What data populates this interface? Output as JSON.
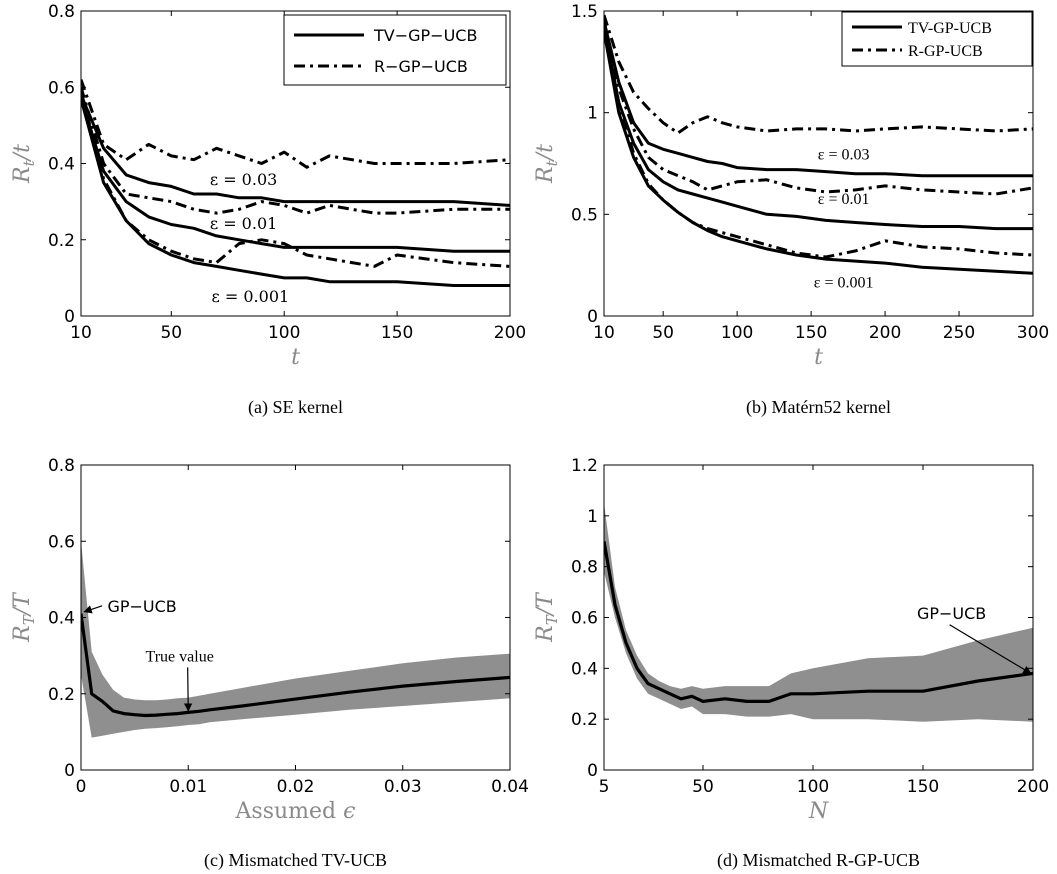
{
  "chart_data": [
    {
      "id": "a",
      "type": "line",
      "caption": "(a) SE kernel",
      "xlabel": "t",
      "ylabel": "R_t / t",
      "xlim": [
        10,
        200
      ],
      "ylim": [
        0,
        0.8
      ],
      "xticks": [
        10,
        50,
        100,
        150,
        200
      ],
      "yticks": [
        0,
        0.2,
        0.4,
        0.6,
        0.8
      ],
      "ytick_labels": [
        "0",
        "0.2",
        "0.4",
        "0.6",
        "0.8"
      ],
      "legend": {
        "placement": "top-right",
        "entries": [
          {
            "label": "TV−GP−UCB",
            "style": "solid"
          },
          {
            "label": "R−GP−UCB",
            "style": "dashdot"
          }
        ]
      },
      "series": [
        {
          "style": "solid",
          "group": "ε = 0.03",
          "x": [
            10,
            20,
            30,
            40,
            50,
            60,
            70,
            80,
            90,
            100,
            110,
            120,
            130,
            140,
            150,
            175,
            200
          ],
          "y": [
            0.58,
            0.44,
            0.37,
            0.35,
            0.34,
            0.32,
            0.32,
            0.31,
            0.31,
            0.3,
            0.3,
            0.3,
            0.3,
            0.3,
            0.3,
            0.3,
            0.29
          ]
        },
        {
          "style": "dashdot",
          "group": "ε = 0.03",
          "x": [
            10,
            20,
            30,
            40,
            50,
            60,
            70,
            80,
            90,
            100,
            110,
            120,
            130,
            140,
            150,
            175,
            200
          ],
          "y": [
            0.62,
            0.45,
            0.41,
            0.45,
            0.42,
            0.41,
            0.44,
            0.42,
            0.4,
            0.43,
            0.39,
            0.42,
            0.41,
            0.4,
            0.4,
            0.4,
            0.41
          ]
        },
        {
          "style": "solid",
          "group": "ε = 0.01",
          "x": [
            10,
            20,
            30,
            40,
            50,
            60,
            70,
            80,
            90,
            100,
            110,
            120,
            130,
            140,
            150,
            175,
            200
          ],
          "y": [
            0.57,
            0.38,
            0.3,
            0.26,
            0.24,
            0.23,
            0.21,
            0.2,
            0.19,
            0.18,
            0.18,
            0.18,
            0.18,
            0.18,
            0.18,
            0.17,
            0.17
          ]
        },
        {
          "style": "dashdot",
          "group": "ε = 0.01",
          "x": [
            10,
            20,
            30,
            40,
            50,
            60,
            70,
            80,
            90,
            100,
            110,
            120,
            130,
            140,
            150,
            175,
            200
          ],
          "y": [
            0.6,
            0.4,
            0.32,
            0.31,
            0.3,
            0.28,
            0.27,
            0.28,
            0.3,
            0.29,
            0.27,
            0.29,
            0.28,
            0.27,
            0.27,
            0.28,
            0.28
          ]
        },
        {
          "style": "solid",
          "group": "ε = 0.001",
          "x": [
            10,
            20,
            30,
            40,
            50,
            60,
            70,
            80,
            90,
            100,
            110,
            120,
            130,
            140,
            150,
            175,
            200
          ],
          "y": [
            0.57,
            0.35,
            0.25,
            0.19,
            0.16,
            0.14,
            0.13,
            0.12,
            0.11,
            0.1,
            0.1,
            0.09,
            0.09,
            0.09,
            0.09,
            0.08,
            0.08
          ]
        },
        {
          "style": "dashdot",
          "group": "ε = 0.001",
          "x": [
            10,
            20,
            30,
            40,
            50,
            60,
            70,
            80,
            90,
            100,
            110,
            120,
            130,
            140,
            150,
            175,
            200
          ],
          "y": [
            0.59,
            0.36,
            0.25,
            0.2,
            0.17,
            0.15,
            0.14,
            0.19,
            0.2,
            0.19,
            0.16,
            0.15,
            0.14,
            0.13,
            0.16,
            0.14,
            0.13
          ]
        }
      ],
      "annotations": [
        {
          "text": "ε = 0.03",
          "x": 82,
          "y": 0.343
        },
        {
          "text": "ε = 0.01",
          "x": 82,
          "y": 0.228
        },
        {
          "text": "ε = 0.001",
          "x": 85,
          "y": 0.037
        }
      ]
    },
    {
      "id": "b",
      "type": "line",
      "caption": "(b) Matérn52 kernel",
      "xlabel": "t",
      "ylabel": "R_t / t",
      "xlim": [
        10,
        300
      ],
      "ylim": [
        0,
        1.5
      ],
      "xticks": [
        10,
        50,
        100,
        150,
        200,
        250,
        300
      ],
      "yticks": [
        0,
        0.5,
        1,
        1.5
      ],
      "ytick_labels": [
        "0",
        "0.5",
        "1",
        "1.5"
      ],
      "legend": {
        "placement": "top-right",
        "entries": [
          {
            "label": "TV-GP-UCB",
            "style": "solid"
          },
          {
            "label": "R-GP-UCB",
            "style": "dashdot"
          }
        ]
      },
      "series": [
        {
          "style": "solid",
          "group": "ε = 0.03",
          "x": [
            10,
            20,
            30,
            40,
            50,
            60,
            70,
            80,
            90,
            100,
            120,
            140,
            160,
            180,
            200,
            225,
            250,
            275,
            300
          ],
          "y": [
            1.45,
            1.15,
            0.95,
            0.85,
            0.82,
            0.8,
            0.78,
            0.76,
            0.75,
            0.73,
            0.72,
            0.72,
            0.71,
            0.7,
            0.7,
            0.69,
            0.69,
            0.69,
            0.69
          ]
        },
        {
          "style": "dashdot",
          "group": "ε = 0.03",
          "x": [
            10,
            20,
            30,
            40,
            50,
            60,
            70,
            80,
            90,
            100,
            120,
            140,
            160,
            180,
            200,
            225,
            250,
            275,
            300
          ],
          "y": [
            1.48,
            1.25,
            1.1,
            1.02,
            0.95,
            0.9,
            0.95,
            0.98,
            0.95,
            0.93,
            0.91,
            0.92,
            0.92,
            0.91,
            0.92,
            0.93,
            0.92,
            0.91,
            0.92
          ]
        },
        {
          "style": "solid",
          "group": "ε = 0.01",
          "x": [
            10,
            20,
            30,
            40,
            50,
            60,
            70,
            80,
            90,
            100,
            120,
            140,
            160,
            180,
            200,
            225,
            250,
            275,
            300
          ],
          "y": [
            1.42,
            1.05,
            0.85,
            0.72,
            0.66,
            0.62,
            0.6,
            0.58,
            0.56,
            0.54,
            0.5,
            0.49,
            0.47,
            0.46,
            0.45,
            0.44,
            0.44,
            0.43,
            0.43
          ]
        },
        {
          "style": "dashdot",
          "group": "ε = 0.01",
          "x": [
            10,
            20,
            30,
            40,
            50,
            60,
            70,
            80,
            90,
            100,
            120,
            140,
            160,
            180,
            200,
            225,
            250,
            275,
            300
          ],
          "y": [
            1.45,
            1.12,
            0.92,
            0.78,
            0.72,
            0.69,
            0.66,
            0.62,
            0.64,
            0.66,
            0.67,
            0.63,
            0.61,
            0.62,
            0.64,
            0.62,
            0.61,
            0.6,
            0.63
          ]
        },
        {
          "style": "solid",
          "group": "ε = 0.001",
          "x": [
            10,
            20,
            30,
            40,
            50,
            60,
            70,
            80,
            90,
            100,
            120,
            140,
            160,
            180,
            200,
            225,
            250,
            275,
            300
          ],
          "y": [
            1.4,
            1.0,
            0.78,
            0.64,
            0.57,
            0.51,
            0.46,
            0.42,
            0.39,
            0.37,
            0.33,
            0.3,
            0.28,
            0.27,
            0.26,
            0.24,
            0.23,
            0.22,
            0.21
          ]
        },
        {
          "style": "dashdot",
          "group": "ε = 0.001",
          "x": [
            10,
            20,
            30,
            40,
            50,
            60,
            70,
            80,
            90,
            100,
            120,
            140,
            160,
            180,
            200,
            225,
            250,
            275,
            300
          ],
          "y": [
            1.43,
            1.05,
            0.8,
            0.65,
            0.57,
            0.51,
            0.46,
            0.43,
            0.41,
            0.39,
            0.35,
            0.31,
            0.29,
            0.32,
            0.37,
            0.34,
            0.33,
            0.31,
            0.3
          ]
        }
      ],
      "annotations": [
        {
          "text": "ε = 0.03",
          "x": 172,
          "y": 0.77
        },
        {
          "text": "ε = 0.01",
          "x": 172,
          "y": 0.55
        },
        {
          "text": "ε = 0.001",
          "x": 172,
          "y": 0.14
        }
      ]
    },
    {
      "id": "c",
      "type": "area",
      "caption": "(c) Mismatched TV-UCB",
      "xlabel": "Assumed ε",
      "ylabel": "R_T / T",
      "xlim": [
        0,
        0.04
      ],
      "ylim": [
        0,
        0.8
      ],
      "xticks": [
        0,
        0.01,
        0.02,
        0.03,
        0.04
      ],
      "xtick_labels": [
        "0",
        "0.01",
        "0.02",
        "0.03",
        "0.04"
      ],
      "yticks": [
        0,
        0.2,
        0.4,
        0.6,
        0.8
      ],
      "ytick_labels": [
        "0",
        "0.2",
        "0.4",
        "0.6",
        "0.8"
      ],
      "mean": {
        "x": [
          0,
          0.001,
          0.002,
          0.003,
          0.004,
          0.005,
          0.006,
          0.007,
          0.008,
          0.009,
          0.01,
          0.011,
          0.012,
          0.015,
          0.02,
          0.025,
          0.03,
          0.035,
          0.04
        ],
        "y": [
          0.41,
          0.2,
          0.18,
          0.155,
          0.148,
          0.145,
          0.143,
          0.144,
          0.146,
          0.148,
          0.151,
          0.154,
          0.158,
          0.168,
          0.186,
          0.204,
          0.22,
          0.232,
          0.243
        ]
      },
      "band": {
        "upper": [
          0.6,
          0.31,
          0.25,
          0.21,
          0.19,
          0.185,
          0.183,
          0.183,
          0.185,
          0.188,
          0.19,
          0.195,
          0.2,
          0.215,
          0.24,
          0.26,
          0.28,
          0.295,
          0.305
        ],
        "lower": [
          0.25,
          0.085,
          0.09,
          0.095,
          0.1,
          0.105,
          0.108,
          0.11,
          0.112,
          0.115,
          0.118,
          0.12,
          0.125,
          0.133,
          0.145,
          0.158,
          0.168,
          0.178,
          0.188
        ]
      },
      "annotations": [
        {
          "text": "GP−UCB",
          "x": 0.0057,
          "y": 0.415,
          "arrow_to": [
            0.0003,
            0.415
          ]
        },
        {
          "text": "True value",
          "x": 0.0092,
          "y": 0.285,
          "arrow_to": [
            0.01,
            0.155
          ]
        }
      ]
    },
    {
      "id": "d",
      "type": "area",
      "caption": "(d) Mismatched R-GP-UCB",
      "xlabel": "N",
      "ylabel": "R_T / T",
      "xlim": [
        5,
        200
      ],
      "ylim": [
        0,
        1.2
      ],
      "xticks": [
        5,
        50,
        100,
        150,
        200
      ],
      "yticks": [
        0,
        0.2,
        0.4,
        0.6,
        0.8,
        1,
        1.2
      ],
      "ytick_labels": [
        "0",
        "0.2",
        "0.4",
        "0.6",
        "0.8",
        "1",
        "1.2"
      ],
      "mean": {
        "x": [
          5,
          10,
          15,
          20,
          25,
          30,
          35,
          40,
          45,
          50,
          60,
          70,
          80,
          90,
          100,
          125,
          150,
          175,
          200
        ],
        "y": [
          0.9,
          0.65,
          0.5,
          0.4,
          0.34,
          0.32,
          0.3,
          0.28,
          0.29,
          0.27,
          0.28,
          0.27,
          0.27,
          0.3,
          0.3,
          0.31,
          0.31,
          0.35,
          0.38
        ]
      },
      "band": {
        "upper": [
          1.05,
          0.72,
          0.55,
          0.45,
          0.38,
          0.35,
          0.33,
          0.32,
          0.33,
          0.32,
          0.33,
          0.33,
          0.33,
          0.38,
          0.4,
          0.44,
          0.45,
          0.51,
          0.56
        ]
      },
      "band_lower": [
        0.78,
        0.6,
        0.46,
        0.36,
        0.3,
        0.28,
        0.26,
        0.24,
        0.25,
        0.22,
        0.22,
        0.21,
        0.21,
        0.22,
        0.2,
        0.2,
        0.19,
        0.2,
        0.19
      ],
      "annotations": [
        {
          "text": "GP−UCB",
          "x": 163,
          "y": 0.595,
          "arrow_to": [
            199,
            0.38
          ]
        }
      ]
    }
  ]
}
